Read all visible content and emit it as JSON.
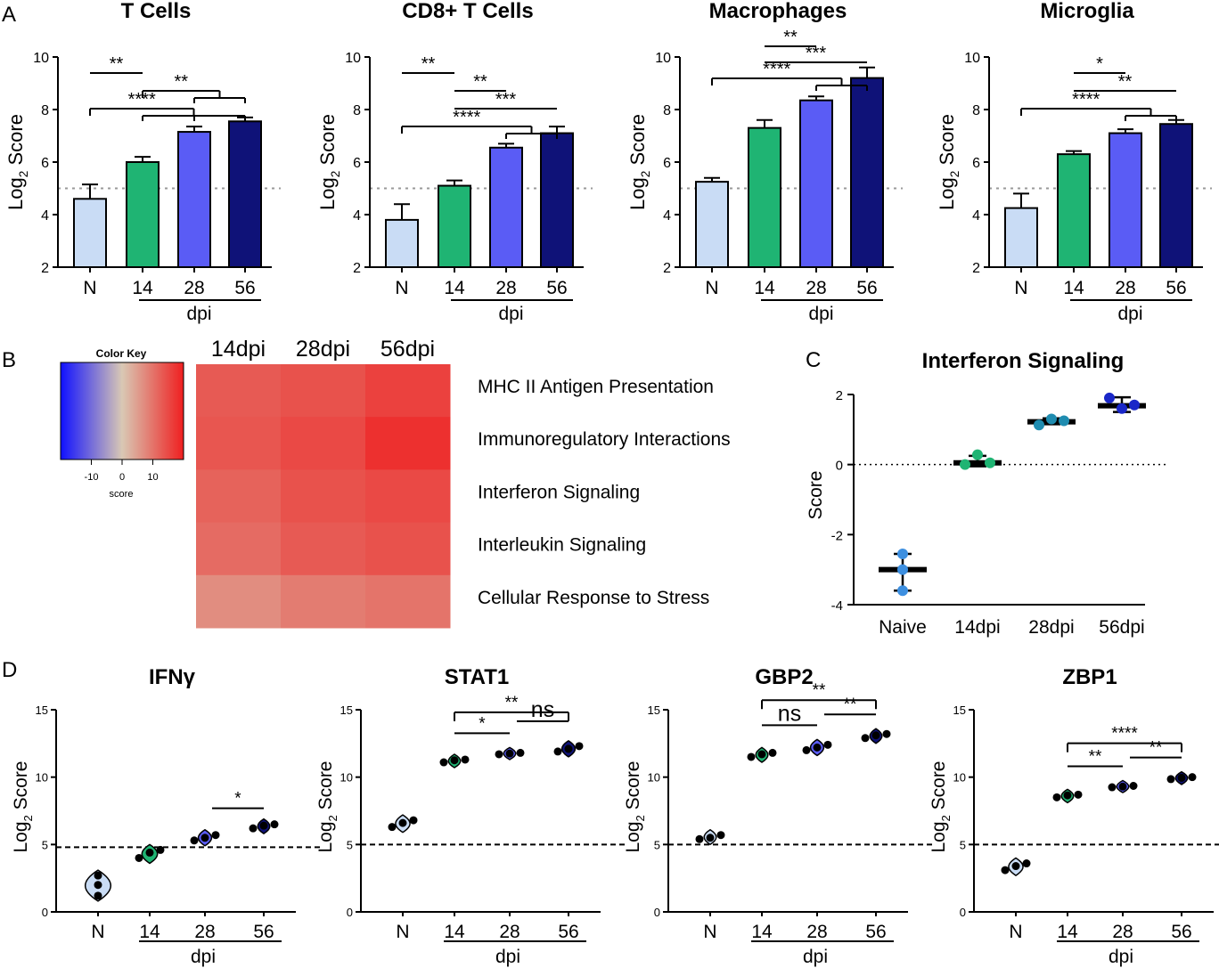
{
  "figure": {
    "panel_labels": [
      "A",
      "B",
      "C",
      "D"
    ]
  },
  "colors": {
    "naive": "#c9dcf5",
    "d14": "#1fb473",
    "d28": "#5a5cf5",
    "d56": "#0f1278",
    "naive_dot": "#3d8fe0",
    "d14_dot": "#1fb473",
    "d28_dot": "#1f8cb0",
    "d56_dot": "#1a27c8",
    "heat_low": "#1010ff",
    "heat_mid": "#d9c8b4",
    "heat_high": "#ef1f20"
  },
  "chart_data": [
    {
      "id": "A1",
      "type": "bar",
      "title": "T Cells",
      "ylabel_main": "Log",
      "ylabel_sub": "2",
      "ylabel_rest": " Score",
      "categories": [
        "N",
        "14",
        "28",
        "56"
      ],
      "xgroup_label": "dpi",
      "ylim": [
        2,
        10
      ],
      "yticks": [
        2,
        4,
        6,
        8,
        10
      ],
      "reference_line": 5,
      "values": [
        4.6,
        6.0,
        7.15,
        7.55
      ],
      "errors": [
        0.55,
        0.2,
        0.2,
        0.15
      ],
      "significance": [
        {
          "label": "**",
          "from": 0,
          "to": [
            1
          ]
        },
        {
          "label": "**",
          "from": 1,
          "to": [
            2,
            3
          ]
        },
        {
          "label": "****",
          "from": 0,
          "to": [
            1,
            2,
            3
          ]
        }
      ]
    },
    {
      "id": "A2",
      "type": "bar",
      "title": "CD8+ T Cells",
      "ylabel_main": "Log",
      "ylabel_sub": "2",
      "ylabel_rest": " Score",
      "categories": [
        "N",
        "14",
        "28",
        "56"
      ],
      "xgroup_label": "dpi",
      "ylim": [
        2,
        10
      ],
      "yticks": [
        2,
        4,
        6,
        8,
        10
      ],
      "reference_line": 5,
      "values": [
        3.8,
        5.1,
        6.55,
        7.1
      ],
      "errors": [
        0.6,
        0.2,
        0.15,
        0.25
      ],
      "significance": [
        {
          "label": "**",
          "from": 0,
          "to": [
            1
          ]
        },
        {
          "label": "**",
          "from": 1,
          "to": [
            2
          ]
        },
        {
          "label": "***",
          "from": 1,
          "to": [
            3
          ]
        },
        {
          "label": "****",
          "from": 0,
          "to": [
            2,
            3
          ]
        }
      ]
    },
    {
      "id": "A3",
      "type": "bar",
      "title": "Macrophages",
      "ylabel_main": "Log",
      "ylabel_sub": "2",
      "ylabel_rest": " Score",
      "categories": [
        "N",
        "14",
        "28",
        "56"
      ],
      "xgroup_label": "dpi",
      "ylim": [
        2,
        10
      ],
      "yticks": [
        2,
        4,
        6,
        8,
        10
      ],
      "reference_line": 5,
      "values": [
        5.25,
        7.3,
        8.35,
        9.2
      ],
      "errors": [
        0.15,
        0.3,
        0.15,
        0.4
      ],
      "significance": [
        {
          "label": "**",
          "from": 1,
          "to": [
            2
          ]
        },
        {
          "label": "***",
          "from": 1,
          "to": [
            3
          ]
        },
        {
          "label": "****",
          "from": 0,
          "to": [
            2,
            3
          ]
        }
      ]
    },
    {
      "id": "A4",
      "type": "bar",
      "title": "Microglia",
      "ylabel_main": "Log",
      "ylabel_sub": "2",
      "ylabel_rest": " Score",
      "categories": [
        "N",
        "14",
        "28",
        "56"
      ],
      "xgroup_label": "dpi",
      "ylim": [
        2,
        10
      ],
      "yticks": [
        2,
        4,
        6,
        8,
        10
      ],
      "reference_line": 5,
      "values": [
        4.25,
        6.3,
        7.1,
        7.45
      ],
      "errors": [
        0.55,
        0.12,
        0.15,
        0.15
      ],
      "significance": [
        {
          "label": "*",
          "from": 1,
          "to": [
            2
          ]
        },
        {
          "label": "**",
          "from": 1,
          "to": [
            3
          ]
        },
        {
          "label": "****",
          "from": 0,
          "to": [
            2,
            3
          ]
        }
      ]
    },
    {
      "id": "B",
      "type": "heatmap",
      "columns": [
        "14dpi",
        "28dpi",
        "56dpi"
      ],
      "rows": [
        "MHC II Antigen Presentation",
        "Immunoregulatory  Interactions",
        "Interferon Signaling",
        "Interleukin Signaling",
        "Cellular Response to Stress"
      ],
      "values": [
        [
          13,
          14,
          16
        ],
        [
          13.5,
          15,
          18
        ],
        [
          12,
          14,
          15
        ],
        [
          11,
          13,
          14
        ],
        [
          7,
          9,
          10
        ]
      ],
      "color_key": {
        "title": "Color Key",
        "xlabel": "score",
        "range": [
          -20,
          20
        ],
        "ticks": [
          -10,
          0,
          10
        ]
      }
    },
    {
      "id": "C",
      "type": "scatter",
      "title": "Interferon Signaling",
      "ylabel": "Score",
      "categories": [
        "Naive",
        "14dpi",
        "28dpi",
        "56dpi"
      ],
      "ylim": [
        -4,
        2
      ],
      "yticks": [
        -4,
        -2,
        0,
        2
      ],
      "reference_line": 0,
      "means": [
        -3.0,
        0.05,
        1.22,
        1.68
      ],
      "error_low": [
        -3.6,
        -0.05,
        1.15,
        1.5
      ],
      "error_high": [
        -2.55,
        0.25,
        1.32,
        1.92
      ],
      "points": [
        [
          -2.55,
          -3.0,
          -3.6
        ],
        [
          0.0,
          0.28,
          0.05
        ],
        [
          1.13,
          1.3,
          1.25
        ],
        [
          1.9,
          1.6,
          1.7
        ]
      ]
    },
    {
      "id": "D1",
      "type": "violin",
      "title": "IFNγ",
      "ylabel_main": "Log",
      "ylabel_sub": "2",
      "ylabel_rest": " Score",
      "categories": [
        "N",
        "14",
        "28",
        "56"
      ],
      "xgroup_label": "dpi",
      "ylim": [
        0,
        15
      ],
      "yticks": [
        0,
        5,
        10,
        15
      ],
      "reference_line": 4.8,
      "points": [
        [
          1.2,
          2.0,
          2.7
        ],
        [
          4.0,
          4.4,
          4.6
        ],
        [
          5.3,
          5.5,
          5.7
        ],
        [
          6.2,
          6.4,
          6.5
        ]
      ],
      "significance": [
        {
          "label": "*",
          "from": 2,
          "to": [
            3
          ]
        }
      ]
    },
    {
      "id": "D2",
      "type": "violin",
      "title": "STAT1",
      "ylabel_main": "Log",
      "ylabel_sub": "2",
      "ylabel_rest": " Score",
      "categories": [
        "N",
        "14",
        "28",
        "56"
      ],
      "xgroup_label": "dpi",
      "ylim": [
        0,
        15
      ],
      "yticks": [
        0,
        5,
        10,
        15
      ],
      "reference_line": 5.0,
      "points": [
        [
          6.3,
          6.6,
          6.8
        ],
        [
          11.1,
          11.25,
          11.3
        ],
        [
          11.7,
          11.75,
          11.8
        ],
        [
          11.9,
          12.1,
          12.3
        ]
      ],
      "significance": [
        {
          "label": "*",
          "from": 1,
          "to": [
            2
          ]
        },
        {
          "label": "ns",
          "from": 2,
          "to": [
            3
          ]
        },
        {
          "label": "**",
          "from": 1,
          "to": [
            3
          ]
        }
      ]
    },
    {
      "id": "D3",
      "type": "violin",
      "title": "GBP2",
      "ylabel_main": "Log",
      "ylabel_sub": "2",
      "ylabel_rest": " Score",
      "categories": [
        "N",
        "14",
        "28",
        "56"
      ],
      "xgroup_label": "dpi",
      "ylim": [
        0,
        15
      ],
      "yticks": [
        0,
        5,
        10,
        15
      ],
      "reference_line": 5.0,
      "points": [
        [
          5.4,
          5.5,
          5.7
        ],
        [
          11.5,
          11.7,
          11.8
        ],
        [
          12.0,
          12.2,
          12.4
        ],
        [
          12.9,
          13.1,
          13.2
        ]
      ],
      "significance": [
        {
          "label": "ns",
          "from": 1,
          "to": [
            2
          ]
        },
        {
          "label": "**",
          "from": 2,
          "to": [
            3
          ]
        },
        {
          "label": "**",
          "from": 1,
          "to": [
            3
          ]
        }
      ]
    },
    {
      "id": "D4",
      "type": "violin",
      "title": "ZBP1",
      "ylabel_main": "Log",
      "ylabel_sub": "2",
      "ylabel_rest": " Score",
      "categories": [
        "N",
        "14",
        "28",
        "56"
      ],
      "xgroup_label": "dpi",
      "ylim": [
        0,
        15
      ],
      "yticks": [
        0,
        5,
        10,
        15
      ],
      "reference_line": 5.0,
      "points": [
        [
          3.1,
          3.4,
          3.6
        ],
        [
          8.5,
          8.65,
          8.7
        ],
        [
          9.25,
          9.3,
          9.35
        ],
        [
          9.85,
          9.95,
          10.0
        ]
      ],
      "significance": [
        {
          "label": "**",
          "from": 1,
          "to": [
            2
          ]
        },
        {
          "label": "**",
          "from": 2,
          "to": [
            3
          ]
        },
        {
          "label": "****",
          "from": 1,
          "to": [
            3
          ]
        }
      ]
    }
  ]
}
